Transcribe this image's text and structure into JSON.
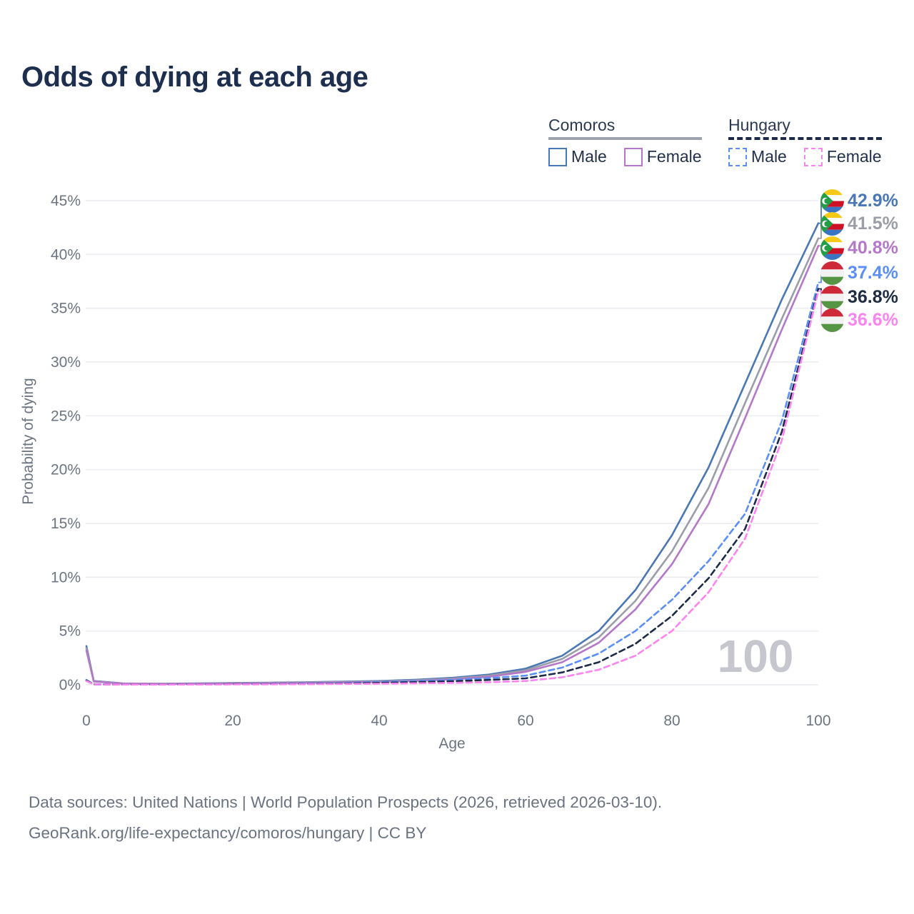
{
  "title": "Odds of dying at each age",
  "legend": {
    "groups": [
      {
        "label": "Comoros",
        "line_style": "solid",
        "underline_color": "#9ca3af",
        "items": [
          {
            "label": "Male",
            "color": "#4a77b5"
          },
          {
            "label": "Female",
            "color": "#b578c8"
          }
        ]
      },
      {
        "label": "Hungary",
        "line_style": "dashed",
        "underline_color": "#1d2b49",
        "items": [
          {
            "label": "Male",
            "color": "#5b8ff5"
          },
          {
            "label": "Female",
            "color": "#fc84f1"
          }
        ]
      }
    ]
  },
  "chart_data": {
    "type": "line",
    "title": "Odds of dying at each age",
    "xlabel": "Age",
    "ylabel": "Probability of dying",
    "xlim": [
      0,
      100
    ],
    "ylim": [
      0,
      45
    ],
    "x_ticks": [
      0,
      20,
      40,
      60,
      80,
      100
    ],
    "y_ticks": [
      0,
      5,
      10,
      15,
      20,
      25,
      30,
      35,
      40,
      45
    ],
    "y_tick_suffix": "%",
    "grid": "horizontal-only",
    "legend_position": "top-right",
    "hover_age_watermark": "100",
    "x": [
      0,
      1,
      5,
      10,
      15,
      20,
      25,
      30,
      35,
      40,
      45,
      50,
      55,
      60,
      65,
      70,
      75,
      80,
      85,
      90,
      95,
      100
    ],
    "series": [
      {
        "id": "comoros-male",
        "name": "Comoros Male",
        "country": "Comoros",
        "sex": "Male",
        "color": "#4a77b5",
        "dash": "solid",
        "end_label": "42.9%",
        "values": [
          3.6,
          0.35,
          0.13,
          0.1,
          0.13,
          0.17,
          0.2,
          0.24,
          0.29,
          0.35,
          0.47,
          0.65,
          0.95,
          1.5,
          2.7,
          5.0,
          8.8,
          13.9,
          20.2,
          28.0,
          35.8,
          42.9
        ]
      },
      {
        "id": "comoros-total",
        "name": "Comoros Both sexes",
        "country": "Comoros",
        "sex": "Both",
        "color": "#9b9ea6",
        "dash": "solid",
        "end_label": "41.5%",
        "values": [
          3.4,
          0.32,
          0.12,
          0.09,
          0.11,
          0.15,
          0.18,
          0.21,
          0.26,
          0.31,
          0.41,
          0.57,
          0.85,
          1.35,
          2.4,
          4.4,
          7.8,
          12.4,
          18.3,
          26.2,
          34.0,
          41.5
        ]
      },
      {
        "id": "comoros-female",
        "name": "Comoros Female",
        "country": "Comoros",
        "sex": "Female",
        "color": "#b578c8",
        "dash": "solid",
        "end_label": "40.8%",
        "values": [
          3.2,
          0.3,
          0.11,
          0.08,
          0.1,
          0.12,
          0.15,
          0.18,
          0.22,
          0.27,
          0.36,
          0.5,
          0.75,
          1.2,
          2.1,
          3.9,
          7.0,
          11.2,
          16.8,
          24.8,
          33.0,
          40.8
        ]
      },
      {
        "id": "hungary-male",
        "name": "Hungary Male",
        "country": "Hungary",
        "sex": "Male",
        "color": "#5b8ff5",
        "dash": "dashed",
        "end_label": "37.4%",
        "values": [
          0.45,
          0.05,
          0.02,
          0.02,
          0.04,
          0.06,
          0.08,
          0.11,
          0.16,
          0.25,
          0.34,
          0.45,
          0.62,
          0.85,
          1.6,
          2.9,
          5.0,
          7.9,
          11.5,
          15.9,
          24.5,
          37.4
        ]
      },
      {
        "id": "hungary-total",
        "name": "Hungary Both sexes",
        "country": "Hungary",
        "sex": "Both",
        "color": "#1d2b49",
        "dash": "dashed",
        "end_label": "36.8%",
        "values": [
          0.4,
          0.04,
          0.02,
          0.02,
          0.03,
          0.05,
          0.06,
          0.08,
          0.12,
          0.18,
          0.25,
          0.33,
          0.45,
          0.6,
          1.15,
          2.1,
          3.8,
          6.4,
          9.9,
          14.5,
          23.5,
          36.8
        ]
      },
      {
        "id": "hungary-female",
        "name": "Hungary Female",
        "country": "Hungary",
        "sex": "Female",
        "color": "#fc84f1",
        "dash": "dashed",
        "end_label": "36.6%",
        "values": [
          0.35,
          0.04,
          0.02,
          0.01,
          0.02,
          0.03,
          0.04,
          0.06,
          0.08,
          0.1,
          0.14,
          0.18,
          0.24,
          0.35,
          0.7,
          1.4,
          2.7,
          5.0,
          8.6,
          13.6,
          22.7,
          36.6
        ]
      }
    ]
  },
  "end_labels": [
    {
      "value": "42.9%",
      "flag": "comoros",
      "color": "#4a77b5"
    },
    {
      "value": "41.5%",
      "flag": "comoros",
      "color": "#9b9ea6"
    },
    {
      "value": "40.8%",
      "flag": "comoros",
      "color": "#b578c8"
    },
    {
      "value": "37.4%",
      "flag": "hungary",
      "color": "#5b8ff5"
    },
    {
      "value": "36.8%",
      "flag": "hungary",
      "color": "#202c42"
    },
    {
      "value": "36.6%",
      "flag": "hungary",
      "color": "#fc84f1"
    }
  ],
  "footer": {
    "line1": "Data sources: United Nations | World Population Prospects (2026, retrieved 2026-03-10).",
    "line2": "GeoRank.org/life-expectancy/comoros/hungary | CC BY"
  }
}
